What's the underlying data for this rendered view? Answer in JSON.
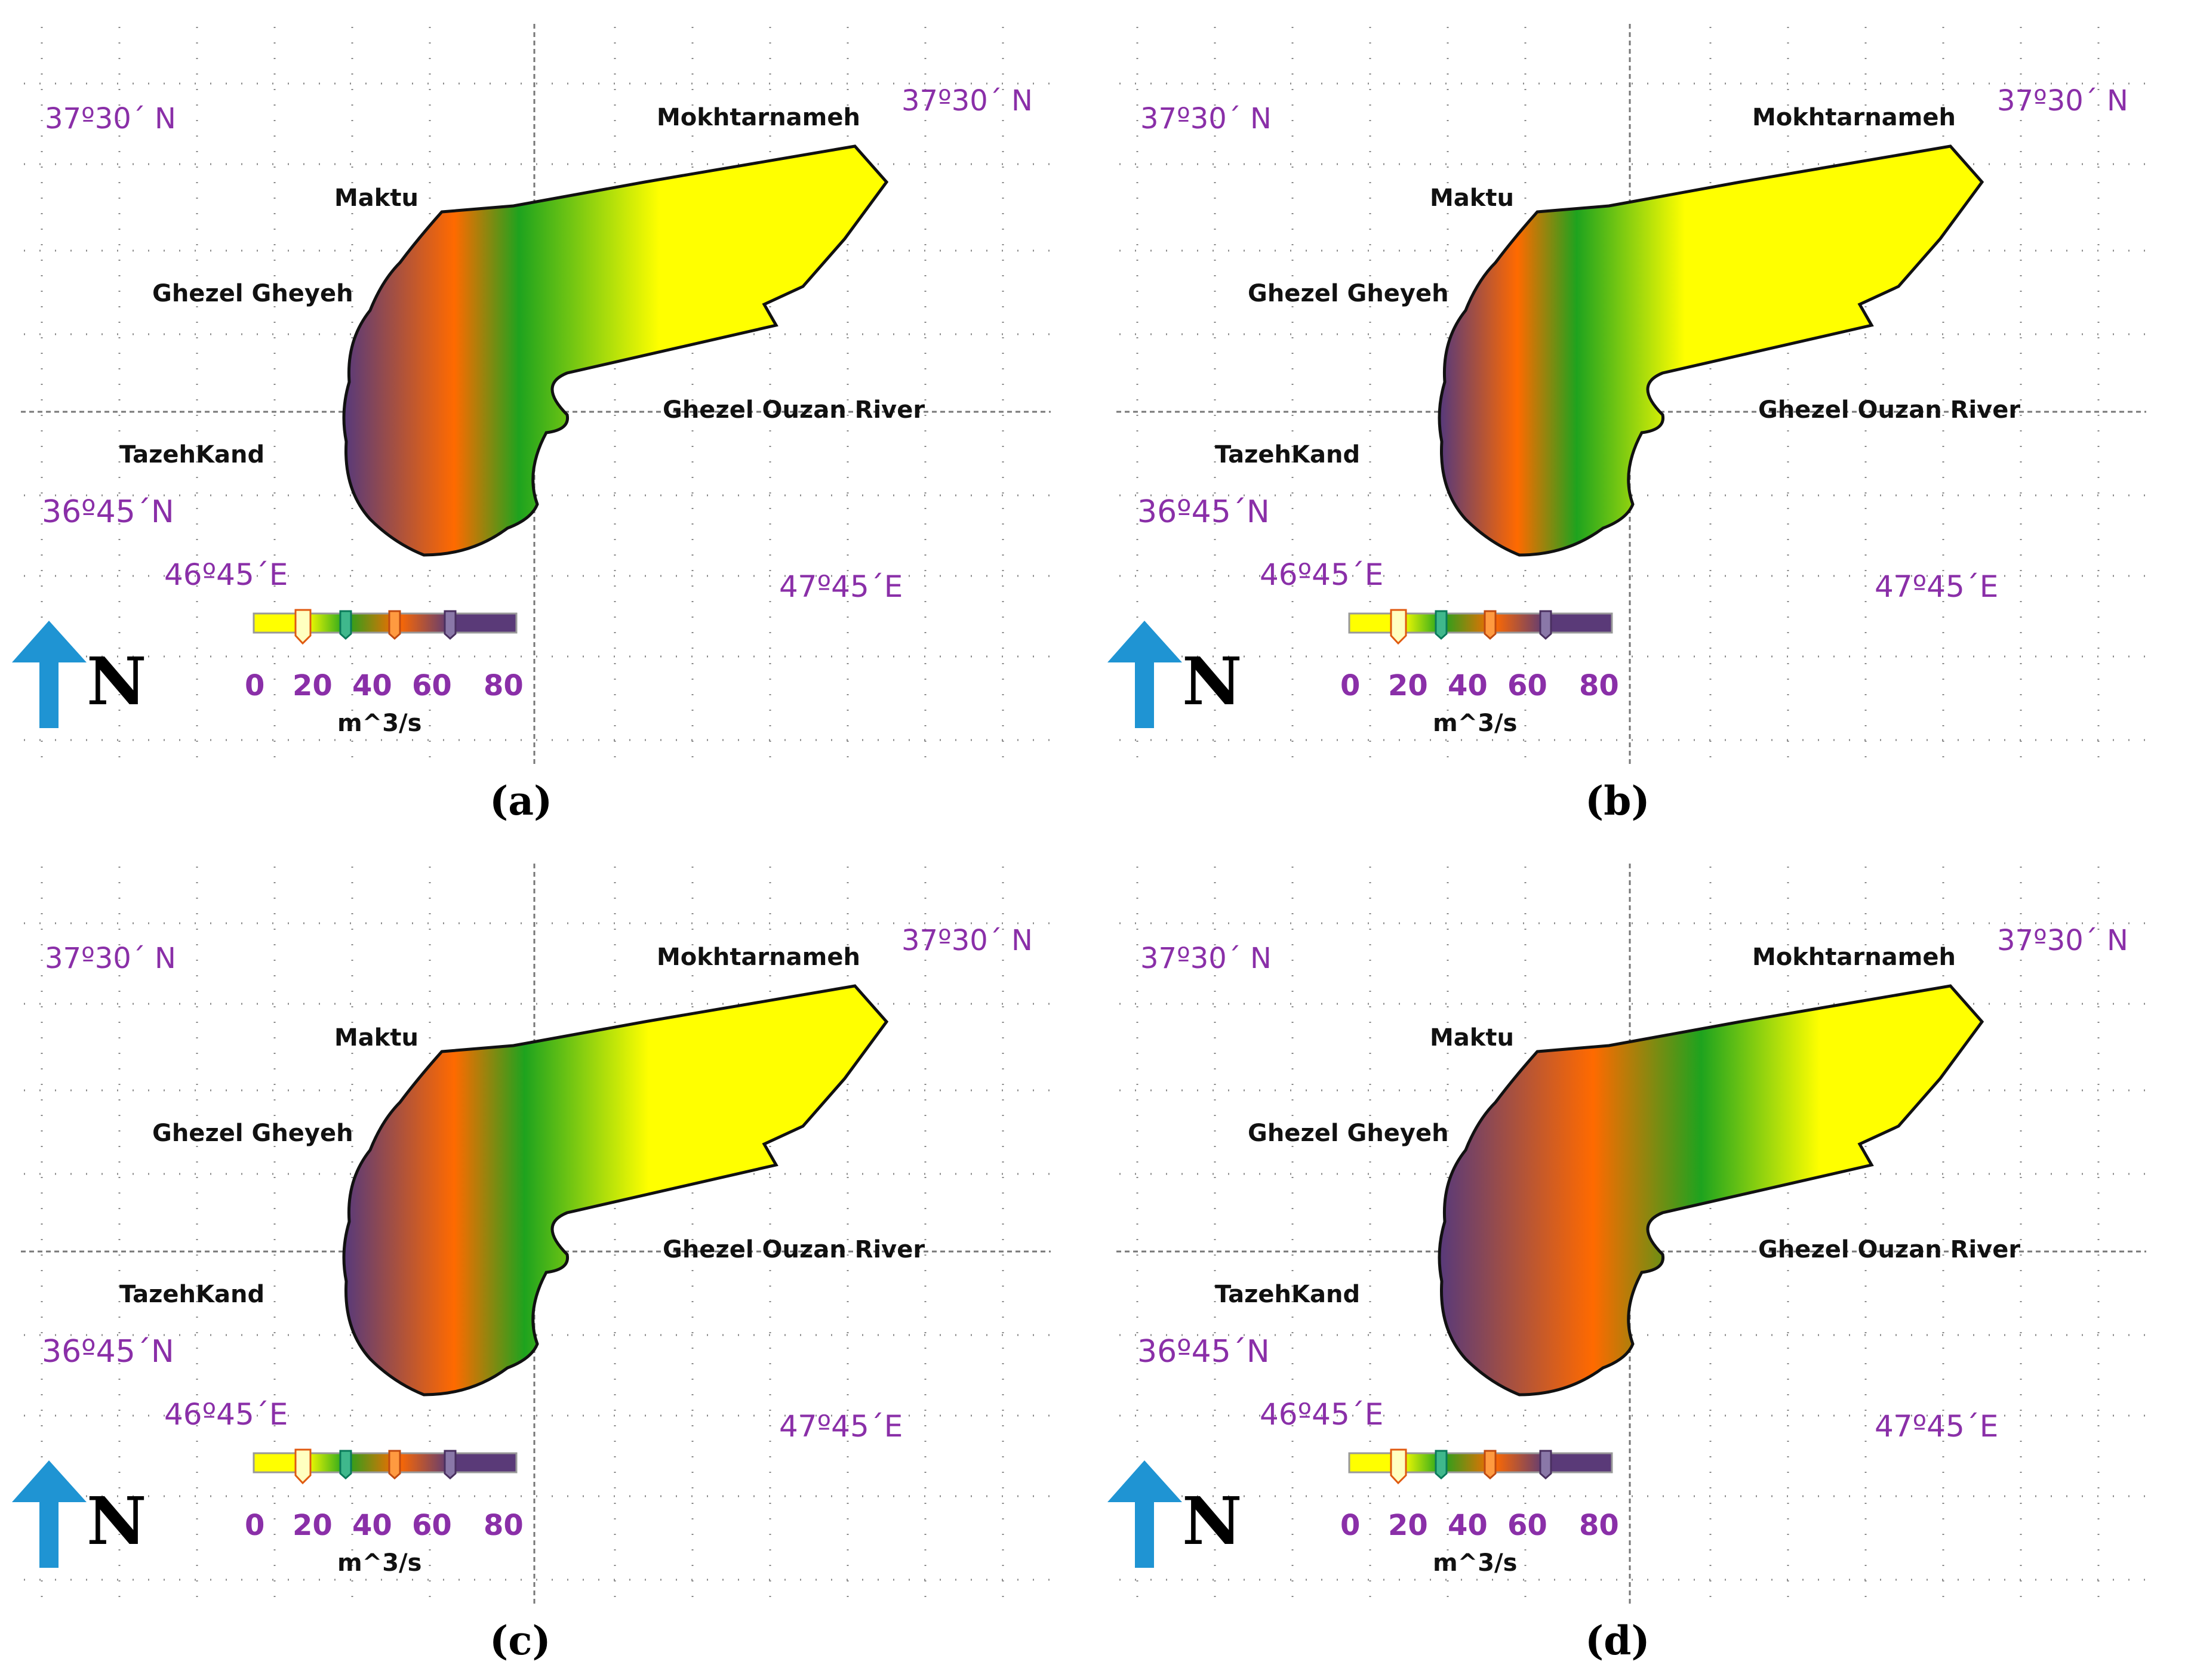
{
  "colors": {
    "yellow": "#ffff00",
    "green": "#1ea31e",
    "orange": "#ff6a00",
    "purple": "#5a3a78",
    "coordinate_text": "#8a2fa8",
    "north_arrow": "#1f94d3"
  },
  "common": {
    "places": {
      "mokhtarnameh": "Mokhtarnameh",
      "maktu": "Maktu",
      "ghezel_gheyeh": "Ghezel Gheyeh",
      "tazehkand": "TazehKand",
      "river": "Ghezel Ouzan River"
    },
    "coords": {
      "lat_top_left": "37º30´ N",
      "lat_top_right": "37º30´ N",
      "lat_bottom": "36º45´N",
      "lon_left": "46º45´E",
      "lon_right": "47º45´E"
    },
    "legend": {
      "ticks": [
        "0",
        "20",
        "40",
        "60",
        "80"
      ],
      "unit": "m^3/s"
    },
    "north_label": "N",
    "north_icon": "north-arrow-icon"
  },
  "panels": [
    {
      "caption": "(a)",
      "gradient_order": [
        "purple",
        "orange",
        "green",
        "yellow"
      ],
      "gradient_breaks": [
        0.0,
        0.2,
        0.32,
        0.58,
        0.8
      ]
    },
    {
      "caption": "(b)",
      "gradient_order": [
        "purple",
        "orange",
        "green",
        "yellow"
      ],
      "gradient_breaks": [
        0.0,
        0.14,
        0.25,
        0.45,
        0.6
      ]
    },
    {
      "caption": "(c)",
      "gradient_order": [
        "purple",
        "orange",
        "green",
        "yellow"
      ],
      "gradient_breaks": [
        0.0,
        0.2,
        0.33,
        0.56,
        0.7
      ]
    },
    {
      "caption": "(d)",
      "gradient_order": [
        "purple",
        "orange",
        "green",
        "yellow"
      ],
      "gradient_breaks": [
        0.0,
        0.28,
        0.48,
        0.7,
        0.88
      ]
    }
  ]
}
